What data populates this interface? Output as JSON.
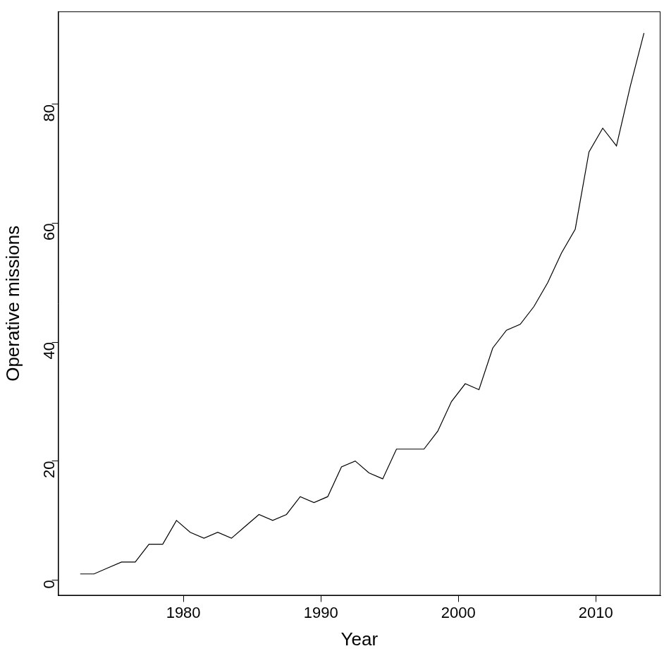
{
  "chart_data": {
    "type": "line",
    "x_label": "Year",
    "y_label": "Operative missions",
    "x": [
      1972.5,
      1973.5,
      1974.5,
      1975.5,
      1976.5,
      1977.5,
      1978.5,
      1979.5,
      1980.5,
      1981.5,
      1982.5,
      1983.5,
      1984.5,
      1985.5,
      1986.5,
      1987.5,
      1988.5,
      1989.5,
      1990.5,
      1991.5,
      1992.5,
      1993.5,
      1994.5,
      1995.5,
      1996.5,
      1997.5,
      1998.5,
      1999.5,
      2000.5,
      2001.5,
      2002.5,
      2003.5,
      2004.5,
      2005.5,
      2006.5,
      2007.5,
      2008.5,
      2009.5,
      2010.5,
      2011.5,
      2012.5,
      2013.5
    ],
    "values": [
      1,
      1,
      2,
      3,
      3,
      6,
      6,
      10,
      8,
      7,
      8,
      7,
      9,
      11,
      10,
      11,
      14,
      13,
      14,
      19,
      20,
      18,
      17,
      22,
      22,
      22,
      25,
      30,
      33,
      32,
      39,
      42,
      43,
      46,
      50,
      55,
      59,
      72,
      76,
      73,
      83,
      92
    ],
    "color": "#000000",
    "xlim": [
      1970.9,
      2014.7
    ],
    "xticks": [
      1980,
      1990,
      2000,
      2010
    ],
    "ylim": [
      -2.64,
      95.64
    ],
    "yticks": [
      0,
      20,
      40,
      60,
      80
    ],
    "grid": false
  }
}
